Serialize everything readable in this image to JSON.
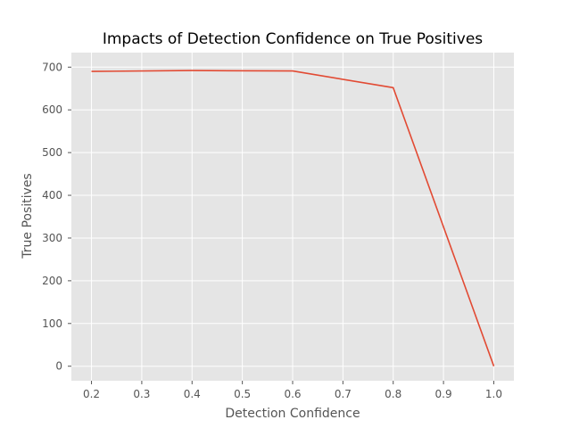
{
  "chart_data": {
    "type": "line",
    "title": "Impacts of Detection Confidence on True Positives",
    "xlabel": "Detection Confidence",
    "ylabel": "True Positives",
    "xlim": [
      0.16,
      1.04
    ],
    "ylim": [
      -34,
      734
    ],
    "xticks": [
      0.2,
      0.3,
      0.4,
      0.5,
      0.6,
      0.7,
      0.8,
      0.9,
      1.0
    ],
    "xtick_labels": [
      "0.2",
      "0.3",
      "0.4",
      "0.5",
      "0.6",
      "0.7",
      "0.8",
      "0.9",
      "1.0"
    ],
    "yticks": [
      0,
      100,
      200,
      300,
      400,
      500,
      600,
      700
    ],
    "ytick_labels": [
      "0",
      "100",
      "200",
      "300",
      "400",
      "500",
      "600",
      "700"
    ],
    "grid": true,
    "series": [
      {
        "x": [
          0.2,
          0.4,
          0.6,
          0.8,
          1.0
        ],
        "y": [
          690,
          692,
          691,
          652,
          0
        ],
        "color": "#E24A33"
      }
    ]
  },
  "colors": {
    "plot_background": "#E5E5E5",
    "grid": "#FFFFFF",
    "line": "#E24A33"
  }
}
